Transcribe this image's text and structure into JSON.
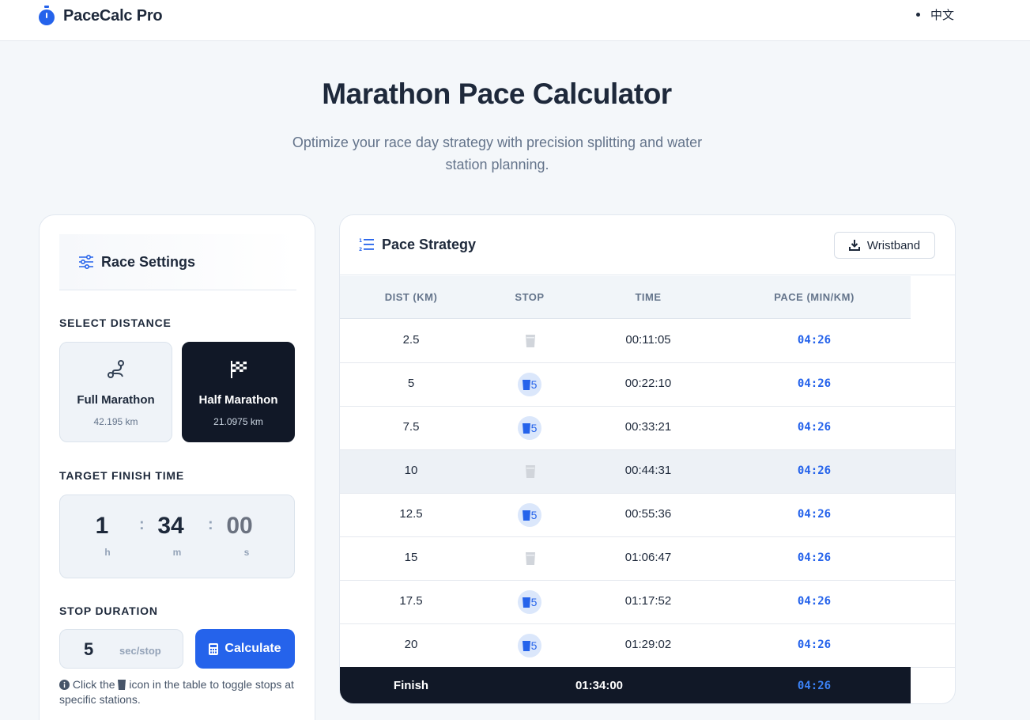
{
  "nav": {
    "brand": "PaceCalc Pro",
    "lang": "中文"
  },
  "hero": {
    "title": "Marathon Pace Calculator",
    "subtitle": "Optimize your race day strategy with precision splitting and water station planning."
  },
  "settings": {
    "title": "Race Settings",
    "distance_label": "SELECT DISTANCE",
    "distances": [
      {
        "name": "Full Marathon",
        "km": "42.195 km",
        "selected": false
      },
      {
        "name": "Half Marathon",
        "km": "21.0975 km",
        "selected": true
      }
    ],
    "target_label": "TARGET FINISH TIME",
    "time": {
      "h": "1",
      "m": "34",
      "s": "00",
      "h_unit": "h",
      "m_unit": "m",
      "s_unit": "s",
      "sep": ":"
    },
    "stop_label": "STOP DURATION",
    "stop_value": "5",
    "stop_unit": "sec/stop",
    "calculate_label": "Calculate",
    "hint_before": "Click the",
    "hint_after": "icon in the table to toggle stops at specific stations."
  },
  "pace": {
    "title": "Pace Strategy",
    "wristband_label": "Wristband",
    "columns": [
      "DIST (KM)",
      "STOP",
      "TIME",
      "PACE (MIN/KM)"
    ],
    "rows": [
      {
        "dist": "2.5",
        "stop": false,
        "stop_sec": "",
        "time": "00:11:05",
        "pace": "04:26",
        "highlight": false
      },
      {
        "dist": "5",
        "stop": true,
        "stop_sec": "5",
        "time": "00:22:10",
        "pace": "04:26",
        "highlight": false
      },
      {
        "dist": "7.5",
        "stop": true,
        "stop_sec": "5",
        "time": "00:33:21",
        "pace": "04:26",
        "highlight": false
      },
      {
        "dist": "10",
        "stop": false,
        "stop_sec": "",
        "time": "00:44:31",
        "pace": "04:26",
        "highlight": true
      },
      {
        "dist": "12.5",
        "stop": true,
        "stop_sec": "5",
        "time": "00:55:36",
        "pace": "04:26",
        "highlight": false
      },
      {
        "dist": "15",
        "stop": false,
        "stop_sec": "",
        "time": "01:06:47",
        "pace": "04:26",
        "highlight": false
      },
      {
        "dist": "17.5",
        "stop": true,
        "stop_sec": "5",
        "time": "01:17:52",
        "pace": "04:26",
        "highlight": false
      },
      {
        "dist": "20",
        "stop": true,
        "stop_sec": "5",
        "time": "01:29:02",
        "pace": "04:26",
        "highlight": false
      }
    ],
    "finish": {
      "label": "Finish",
      "time": "01:34:00",
      "pace": "04:26"
    }
  },
  "colors": {
    "accent": "#2563eb",
    "dark": "#111827",
    "muted": "#64748b"
  },
  "icons": {
    "brand": "stopwatch-icon",
    "settings": "sliders-icon",
    "full": "route-icon",
    "half": "checkered-flag-icon",
    "calculate": "calculator-icon",
    "hint": "info-circle-icon",
    "strategy": "ordered-list-icon",
    "wristband": "download-icon",
    "stop": "cup-icon"
  }
}
